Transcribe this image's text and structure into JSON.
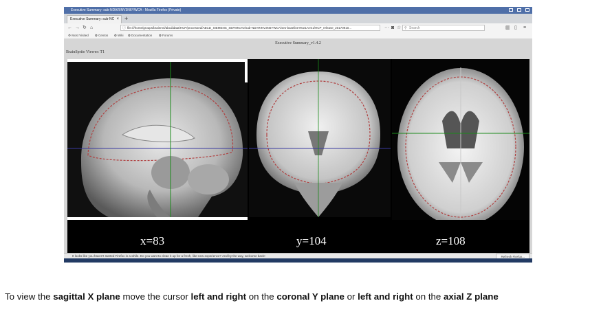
{
  "browser": {
    "title": "Executive Summary: sub-NDARINV3N6YWCA - Mozilla Firefox (Private)",
    "tab_label": "Executive Summary: sub-NC",
    "url": "file:///home/groups/brainmri/abcd/data/HCP/processed/ABCD_SIEMENS_SEFMNoT2/sub-NDARINV3N6YWCA/ses-baselineYear1Arm1/HCP_release_20170910...",
    "search_placeholder": "Search",
    "bookmarks": [
      "Most Visited",
      "Centos",
      "Wiki",
      "Documentation",
      "Forums"
    ]
  },
  "page": {
    "heading": "Executive Summary_v1.4.2",
    "viewer_label": "BrainSprite Viewer: T1"
  },
  "viewer": {
    "x_label": "x=83",
    "y_label": "y=104",
    "z_label": "z=108"
  },
  "statusbar": {
    "message": "It looks like you haven't started Firefox in a while. Do you want to clean it up for a fresh, like-new experience? And by the way, welcome back!",
    "button": "Refresh Firefox..."
  },
  "caption": {
    "p1": "To view the ",
    "b1": "sagittal X plane",
    "p2": " move the cursor ",
    "b2": "left and right",
    "p3": " on the ",
    "b3": "coronal Y plane",
    "p4": " or ",
    "b4": "left and right",
    "p5": " on the ",
    "b5": "axial Z plane"
  },
  "icons": [
    "back-arrow-icon",
    "forward-arrow-icon",
    "reload-icon",
    "home-icon",
    "lock-icon",
    "pocket-icon",
    "star-icon",
    "search-icon",
    "library-icon",
    "sidebar-icon",
    "menu-icon",
    "close-icon",
    "new-tab-icon"
  ],
  "colors": {
    "titlebar": "#4f6fa8",
    "crosshair": "#1a8a1a",
    "contour": "#b04040"
  }
}
